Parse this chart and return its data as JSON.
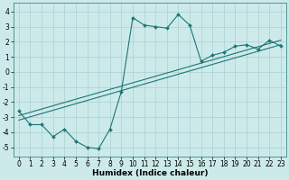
{
  "xlabel": "Humidex (Indice chaleur)",
  "ylabel": "",
  "bg_color": "#cdeaea",
  "line_color": "#1e7575",
  "grid_color": "#aacfcf",
  "xlim": [
    -0.5,
    23.5
  ],
  "ylim": [
    -5.6,
    4.6
  ],
  "xticks": [
    0,
    1,
    2,
    3,
    4,
    5,
    6,
    7,
    8,
    9,
    10,
    11,
    12,
    13,
    14,
    15,
    16,
    17,
    18,
    19,
    20,
    21,
    22,
    23
  ],
  "yticks": [
    -5,
    -4,
    -3,
    -2,
    -1,
    0,
    1,
    2,
    3,
    4
  ],
  "curve_x": [
    0,
    1,
    2,
    3,
    4,
    5,
    6,
    7,
    8,
    9,
    10,
    11,
    12,
    13,
    14,
    15,
    16,
    17,
    18,
    19,
    20,
    21,
    22,
    23
  ],
  "curve_y": [
    -2.6,
    -3.5,
    -3.5,
    -4.3,
    -3.8,
    -4.6,
    -5.0,
    -5.1,
    -3.8,
    -1.3,
    3.6,
    3.1,
    3.0,
    2.9,
    3.8,
    3.1,
    0.7,
    1.1,
    1.3,
    1.7,
    1.8,
    1.5,
    2.1,
    1.7
  ],
  "line1_x": [
    0,
    23
  ],
  "line1_y": [
    -2.9,
    2.1
  ],
  "line2_x": [
    0,
    23
  ],
  "line2_y": [
    -3.2,
    1.8
  ],
  "marker": "D",
  "markersize": 2.0,
  "linewidth": 0.8,
  "tick_fontsize": 5.5,
  "xlabel_fontsize": 6.5
}
